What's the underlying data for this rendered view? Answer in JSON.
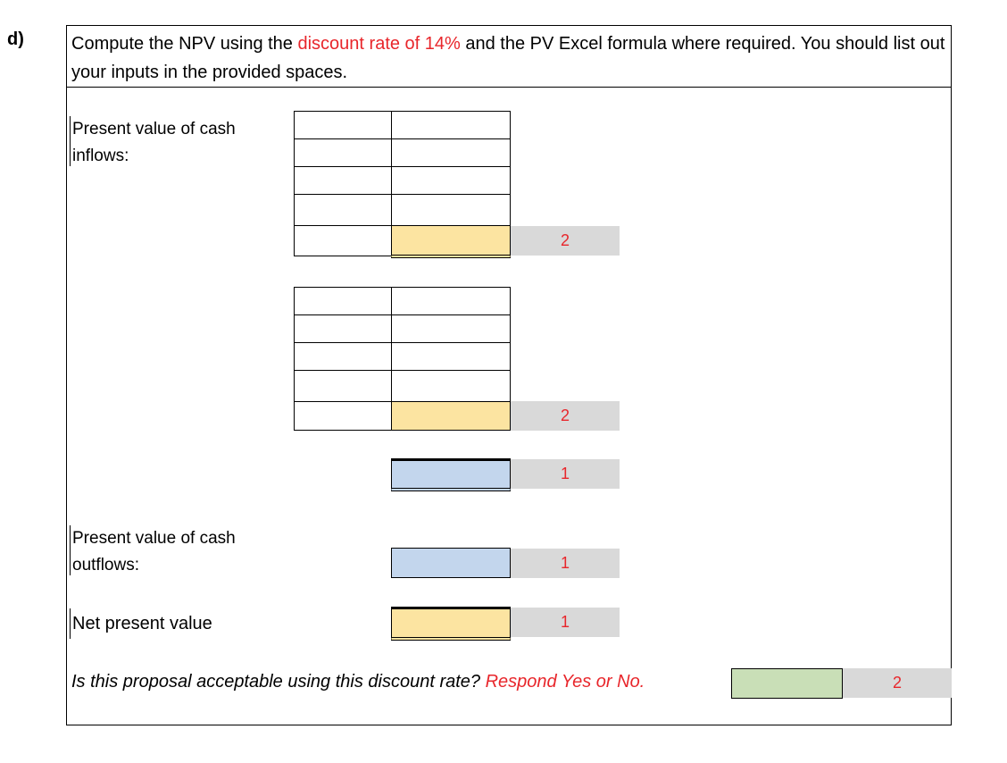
{
  "part": "d)",
  "instructions": {
    "before": "Compute the NPV using the ",
    "highlight": "discount rate of 14%",
    "after": " and the PV Excel formula where required. You should list out your inputs in the provided spaces."
  },
  "labels": {
    "pv_inflows_line1": "Present value of cash",
    "pv_inflows_line2": "inflows:",
    "pv_outflows_line1": "Present value of cash",
    "pv_outflows_line2": "outflows:",
    "npv": "Net present value"
  },
  "question": {
    "text": "Is this proposal acceptable using this discount rate? ",
    "prompt": "Respond Yes or No."
  },
  "points": {
    "inflow_block_1": "2",
    "inflow_block_2": "2",
    "inflow_total": "1",
    "outflows": "1",
    "npv": "1",
    "decision": "2"
  },
  "colors": {
    "accent_red": "#e8262b",
    "answer_yellow": "#fce4a1",
    "answer_blue": "#c3d6ed",
    "answer_green": "#c9dfb7",
    "points_gray": "#d9d9d9"
  }
}
